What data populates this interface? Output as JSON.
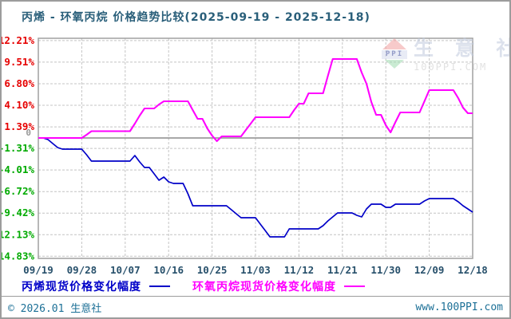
{
  "title": "丙烯 - 环氧丙烷 价格趋势比较(2025-09-19 - 2025-12-18)",
  "watermark": {
    "logo_text": "PPI",
    "brand": "生 意 社",
    "site": "100PPI.COM"
  },
  "footer": {
    "copyright": "© 2026.01 生意社",
    "site": "www.100PPI.com"
  },
  "legend": {
    "items": [
      {
        "label": "丙烯现货价格变化幅度",
        "color": "#0000c8"
      },
      {
        "label": "环氧丙烷现货价格变化幅度",
        "color": "#ff00ff"
      }
    ]
  },
  "colors": {
    "series_propylene": "#0000c8",
    "series_propylene_oxide": "#ff00ff",
    "tick_positive": "#e60000",
    "tick_negative": "#00aa00",
    "tick_zero": "#999999",
    "axis_text": "#27506b",
    "grid": "#c4c4c4",
    "border": "#a0a0a0",
    "zero_line": "#8c8c8c",
    "title": "#2a5f7a",
    "footer_text": "#1b6f96"
  },
  "chart_data": {
    "type": "line",
    "title": "丙烯 - 环氧丙烷 价格趋势比较(2025-09-19 - 2025-12-18)",
    "date_range": [
      "2025-09-19",
      "2025-12-18"
    ],
    "frequency": "daily",
    "unit": "percent change",
    "grid": true,
    "legend_position": "bottom",
    "ylim": [
      -14.83,
      12.21
    ],
    "x_tick_labels": [
      "09/19",
      "09/28",
      "10/07",
      "10/16",
      "10/25",
      "11/03",
      "11/12",
      "11/21",
      "11/30",
      "12/09",
      "12/18"
    ],
    "y_ticks": [
      {
        "label": "12.21%",
        "value": 12.21
      },
      {
        "label": "9.51%",
        "value": 9.51
      },
      {
        "label": "6.80%",
        "value": 6.8
      },
      {
        "label": "4.10%",
        "value": 4.1
      },
      {
        "label": "1.39%",
        "value": 1.39
      },
      {
        "label": "0",
        "value": 0
      },
      {
        "label": "-1.31%",
        "value": -1.31
      },
      {
        "label": "-4.01%",
        "value": -4.01
      },
      {
        "label": "-6.72%",
        "value": -6.72
      },
      {
        "label": "-9.42%",
        "value": -9.42
      },
      {
        "label": "-12.13%",
        "value": -12.13
      },
      {
        "label": "-14.83%",
        "value": -14.83
      }
    ],
    "series": [
      {
        "name": "丙烯现货价格变化幅度",
        "color": "#0000c8",
        "values": [
          0,
          0,
          -0.2,
          -0.7,
          -1.2,
          -1.4,
          -1.4,
          -1.4,
          -1.4,
          -1.4,
          -2.1,
          -2.9,
          -2.9,
          -2.9,
          -2.9,
          -2.9,
          -2.9,
          -2.9,
          -2.9,
          -2.9,
          -2.2,
          -3.0,
          -3.7,
          -3.7,
          -4.5,
          -5.3,
          -4.9,
          -5.5,
          -5.7,
          -5.7,
          -5.7,
          -7.0,
          -8.5,
          -8.5,
          -8.5,
          -8.5,
          -8.5,
          -8.5,
          -8.5,
          -8.5,
          -9.0,
          -9.5,
          -10.0,
          -10.0,
          -10.0,
          -10.0,
          -10.8,
          -11.6,
          -12.4,
          -12.4,
          -12.4,
          -12.4,
          -11.4,
          -11.4,
          -11.4,
          -11.4,
          -11.4,
          -11.4,
          -11.4,
          -11.0,
          -10.4,
          -9.9,
          -9.4,
          -9.4,
          -9.4,
          -9.4,
          -9.7,
          -9.9,
          -8.9,
          -8.3,
          -8.3,
          -8.3,
          -8.7,
          -8.7,
          -8.3,
          -8.3,
          -8.3,
          -8.3,
          -8.3,
          -8.3,
          -7.9,
          -7.6,
          -7.6,
          -7.6,
          -7.6,
          -7.6,
          -7.6,
          -8.0,
          -8.5,
          -8.9,
          -9.3
        ]
      },
      {
        "name": "环氧丙烷现货价格变化幅度",
        "color": "#ff00ff",
        "values": [
          0,
          0,
          0,
          0,
          0,
          0,
          0,
          0,
          0,
          0,
          0.4,
          0.85,
          0.85,
          0.85,
          0.85,
          0.85,
          0.85,
          0.85,
          0.85,
          0.85,
          1.8,
          2.8,
          3.7,
          3.7,
          3.7,
          4.2,
          4.6,
          4.6,
          4.6,
          4.6,
          4.6,
          4.6,
          3.5,
          2.4,
          2.4,
          1.2,
          0.3,
          -0.4,
          0.2,
          0.2,
          0.2,
          0.2,
          0.2,
          1.0,
          1.8,
          2.6,
          2.6,
          2.6,
          2.6,
          2.6,
          2.6,
          2.6,
          2.6,
          3.5,
          4.3,
          4.3,
          5.6,
          5.6,
          5.6,
          5.6,
          7.8,
          9.9,
          9.9,
          9.9,
          9.9,
          9.9,
          9.9,
          8.2,
          6.8,
          4.5,
          2.9,
          2.9,
          1.6,
          0.7,
          2.0,
          3.2,
          3.2,
          3.2,
          3.2,
          3.2,
          4.6,
          6.0,
          6.0,
          6.0,
          6.0,
          6.0,
          6.0,
          5.0,
          3.8,
          3.1,
          3.1
        ]
      }
    ]
  }
}
